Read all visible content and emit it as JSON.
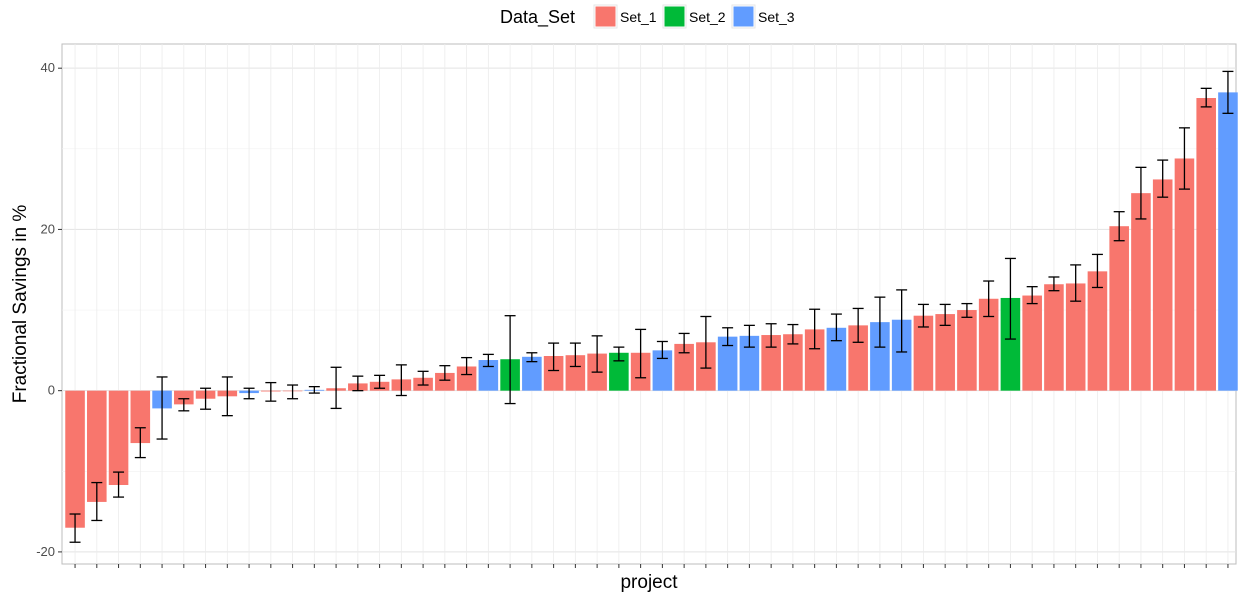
{
  "chart_data": {
    "type": "bar",
    "title": "",
    "xlabel": "project",
    "ylabel": "Fractional Savings in %",
    "ylim": [
      -21.5,
      43
    ],
    "yticks": [
      -20,
      0,
      20,
      40
    ],
    "grid": true,
    "legend": {
      "title": "Data_Set",
      "position": "top",
      "entries": [
        {
          "name": "Set_1",
          "color": "#F8766D"
        },
        {
          "name": "Set_2",
          "color": "#00BA38"
        },
        {
          "name": "Set_3",
          "color": "#619CFF"
        }
      ]
    },
    "bars": [
      {
        "set": "Set_1",
        "value": -17.0,
        "err_low": -18.8,
        "err_high": -15.3
      },
      {
        "set": "Set_1",
        "value": -13.8,
        "err_low": -16.1,
        "err_high": -11.4
      },
      {
        "set": "Set_1",
        "value": -11.7,
        "err_low": -13.2,
        "err_high": -10.1
      },
      {
        "set": "Set_1",
        "value": -6.5,
        "err_low": -8.3,
        "err_high": -4.6
      },
      {
        "set": "Set_3",
        "value": -2.2,
        "err_low": -6.0,
        "err_high": 1.7
      },
      {
        "set": "Set_1",
        "value": -1.7,
        "err_low": -2.5,
        "err_high": -1.0
      },
      {
        "set": "Set_1",
        "value": -1.0,
        "err_low": -2.3,
        "err_high": 0.3
      },
      {
        "set": "Set_1",
        "value": -0.7,
        "err_low": -3.1,
        "err_high": 1.7
      },
      {
        "set": "Set_3",
        "value": -0.3,
        "err_low": -1.0,
        "err_high": 0.3
      },
      {
        "set": "Set_1",
        "value": -0.1,
        "err_low": -1.3,
        "err_high": 1.0
      },
      {
        "set": "Set_1",
        "value": 0.0,
        "err_low": -1.0,
        "err_high": 0.7
      },
      {
        "set": "Set_3",
        "value": 0.1,
        "err_low": -0.3,
        "err_high": 0.5
      },
      {
        "set": "Set_1",
        "value": 0.3,
        "err_low": -2.2,
        "err_high": 2.9
      },
      {
        "set": "Set_1",
        "value": 0.9,
        "err_low": 0.0,
        "err_high": 1.8
      },
      {
        "set": "Set_1",
        "value": 1.1,
        "err_low": 0.3,
        "err_high": 1.9
      },
      {
        "set": "Set_1",
        "value": 1.4,
        "err_low": -0.6,
        "err_high": 3.2
      },
      {
        "set": "Set_1",
        "value": 1.6,
        "err_low": 0.7,
        "err_high": 2.4
      },
      {
        "set": "Set_1",
        "value": 2.2,
        "err_low": 1.3,
        "err_high": 3.1
      },
      {
        "set": "Set_1",
        "value": 3.0,
        "err_low": 2.0,
        "err_high": 4.1
      },
      {
        "set": "Set_3",
        "value": 3.8,
        "err_low": 3.0,
        "err_high": 4.5
      },
      {
        "set": "Set_2",
        "value": 3.9,
        "err_low": -1.6,
        "err_high": 9.3
      },
      {
        "set": "Set_3",
        "value": 4.2,
        "err_low": 3.6,
        "err_high": 4.7
      },
      {
        "set": "Set_1",
        "value": 4.3,
        "err_low": 2.5,
        "err_high": 5.9
      },
      {
        "set": "Set_1",
        "value": 4.4,
        "err_low": 3.0,
        "err_high": 5.9
      },
      {
        "set": "Set_1",
        "value": 4.6,
        "err_low": 2.3,
        "err_high": 6.8
      },
      {
        "set": "Set_2",
        "value": 4.7,
        "err_low": 3.7,
        "err_high": 5.4
      },
      {
        "set": "Set_1",
        "value": 4.7,
        "err_low": 1.6,
        "err_high": 7.6
      },
      {
        "set": "Set_3",
        "value": 5.0,
        "err_low": 4.0,
        "err_high": 6.1
      },
      {
        "set": "Set_1",
        "value": 5.8,
        "err_low": 4.7,
        "err_high": 7.1
      },
      {
        "set": "Set_1",
        "value": 6.0,
        "err_low": 2.8,
        "err_high": 9.2
      },
      {
        "set": "Set_3",
        "value": 6.7,
        "err_low": 5.6,
        "err_high": 7.8
      },
      {
        "set": "Set_3",
        "value": 6.8,
        "err_low": 5.4,
        "err_high": 8.1
      },
      {
        "set": "Set_1",
        "value": 6.9,
        "err_low": 5.4,
        "err_high": 8.3
      },
      {
        "set": "Set_1",
        "value": 7.0,
        "err_low": 5.8,
        "err_high": 8.2
      },
      {
        "set": "Set_1",
        "value": 7.6,
        "err_low": 5.2,
        "err_high": 10.1
      },
      {
        "set": "Set_3",
        "value": 7.8,
        "err_low": 6.2,
        "err_high": 9.5
      },
      {
        "set": "Set_1",
        "value": 8.1,
        "err_low": 6.0,
        "err_high": 10.2
      },
      {
        "set": "Set_3",
        "value": 8.5,
        "err_low": 5.4,
        "err_high": 11.6
      },
      {
        "set": "Set_3",
        "value": 8.8,
        "err_low": 4.8,
        "err_high": 12.5
      },
      {
        "set": "Set_1",
        "value": 9.3,
        "err_low": 7.9,
        "err_high": 10.7
      },
      {
        "set": "Set_1",
        "value": 9.5,
        "err_low": 8.1,
        "err_high": 10.7
      },
      {
        "set": "Set_1",
        "value": 10.0,
        "err_low": 9.1,
        "err_high": 10.8
      },
      {
        "set": "Set_1",
        "value": 11.4,
        "err_low": 9.2,
        "err_high": 13.6
      },
      {
        "set": "Set_2",
        "value": 11.5,
        "err_low": 6.4,
        "err_high": 16.4
      },
      {
        "set": "Set_1",
        "value": 11.8,
        "err_low": 10.8,
        "err_high": 12.9
      },
      {
        "set": "Set_1",
        "value": 13.2,
        "err_low": 12.4,
        "err_high": 14.1
      },
      {
        "set": "Set_1",
        "value": 13.3,
        "err_low": 11.1,
        "err_high": 15.6
      },
      {
        "set": "Set_1",
        "value": 14.8,
        "err_low": 12.8,
        "err_high": 16.9
      },
      {
        "set": "Set_1",
        "value": 20.4,
        "err_low": 18.6,
        "err_high": 22.2
      },
      {
        "set": "Set_1",
        "value": 24.5,
        "err_low": 21.3,
        "err_high": 27.7
      },
      {
        "set": "Set_1",
        "value": 26.2,
        "err_low": 24.0,
        "err_high": 28.6
      },
      {
        "set": "Set_1",
        "value": 28.8,
        "err_low": 25.0,
        "err_high": 32.6
      },
      {
        "set": "Set_1",
        "value": 36.3,
        "err_low": 35.2,
        "err_high": 37.5
      },
      {
        "set": "Set_3",
        "value": 37.0,
        "err_low": 34.4,
        "err_high": 39.6
      }
    ]
  }
}
